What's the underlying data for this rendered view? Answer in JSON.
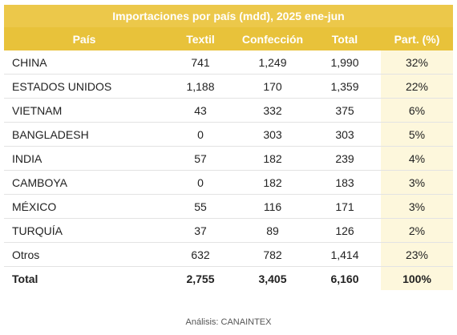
{
  "chart_data": {
    "type": "table",
    "title": "Importaciones por país (mdd), 2025 ene-jun",
    "columns": [
      "País",
      "Textil",
      "Confección",
      "Total",
      "Part. (%)"
    ],
    "rows": [
      [
        "CHINA",
        "741",
        "1,249",
        "1,990",
        "32%"
      ],
      [
        "ESTADOS UNIDOS",
        "1,188",
        "170",
        "1,359",
        "22%"
      ],
      [
        "VIETNAM",
        "43",
        "332",
        "375",
        "6%"
      ],
      [
        "BANGLADESH",
        "0",
        "303",
        "303",
        "5%"
      ],
      [
        "INDIA",
        "57",
        "182",
        "239",
        "4%"
      ],
      [
        "CAMBOYA",
        "0",
        "182",
        "183",
        "3%"
      ],
      [
        "MÉXICO",
        "55",
        "116",
        "171",
        "3%"
      ],
      [
        "TURQUÍA",
        "37",
        "89",
        "126",
        "2%"
      ],
      [
        "Otros",
        "632",
        "782",
        "1,414",
        "23%"
      ],
      [
        "Total",
        "2,755",
        "3,405",
        "6,160",
        "100%"
      ]
    ],
    "source": "Análisis: CANAINTEX"
  },
  "colors": {
    "header": "#e8c23a",
    "share_column": "#fdf7dc"
  }
}
